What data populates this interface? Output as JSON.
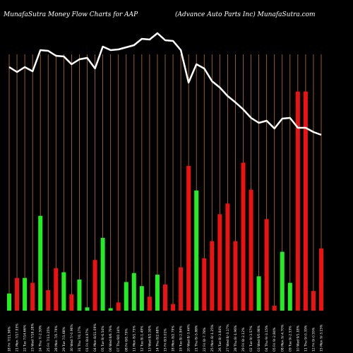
{
  "chart_data": {
    "type": "bar",
    "title_left": "MunafaSutra  Money Flow  Charts for AAP",
    "title_right": "(Advance   Auto   Parts Inc) MunafaSutra.com",
    "colors": {
      "background": "#000000",
      "gridline": "#b87333",
      "up": "#22ee22",
      "down": "#ee1111",
      "price_line": "#ffffff",
      "text": "#ffffff"
    },
    "categories": [
      "18 Fri 7/11.56%",
      "21 Mon 7/17.93%",
      "22 Tue 7/14.66%",
      "23 Wed 7/18.28%",
      "24 Thu 7/-2.59%",
      "25 Fri 7/13.25%",
      "28 Mon 7/0.79%",
      "29 Tue 7/1.68%",
      "30 Wed 7/-0.96%",
      "31 Thu 7/0.17%",
      "01 Fri 8/4.97%",
      "04 Mon 8/11.09%",
      "05 Tue 8/-6.54%",
      "06 Wed 8/6.79%",
      "07 Thu 8/0.14%",
      "08 Fri 8/0.75%",
      "11 Mon 8/1.75%",
      "12 Tue 8/-1.49%",
      "13 Wed 8/2.59%",
      "14 Thu 8/2.68%",
      "15 Fri 8/3.01%",
      "18 Mon 8/2.79%",
      "19 Tue 8/-2.94%",
      "20 Wed 8/-3.44%",
      "21 Thu 8/-5.86%",
      "22 Fri 8/-7.78%",
      "25 Mon 8/-1.25%",
      "26 Tue 8/-3.84%",
      "27 Wed 8/-3.17%",
      "28 Thu 8/-1.96%",
      "29 Fri 8/-2.12%",
      "02 Tue 9/-3.57%",
      "03 Wed 9/0.98%",
      "04 Thu 9/-3.15%",
      "05 Fri 9/-2.84%",
      "08 Mon 9/-4.70%",
      "09 Tue 9/-2.53%",
      "10 Wed 9/1.18%",
      "11 Thu 9/-0.35%",
      "12 Fri 9/-0.55%",
      "15 Mon 9/-3.15%"
    ],
    "bars": [
      {
        "value": 21,
        "direction": "up"
      },
      {
        "value": 40,
        "direction": "down"
      },
      {
        "value": 40,
        "direction": "up"
      },
      {
        "value": 34,
        "direction": "down"
      },
      {
        "value": 116,
        "direction": "up"
      },
      {
        "value": 25,
        "direction": "down"
      },
      {
        "value": 52,
        "direction": "down"
      },
      {
        "value": 47,
        "direction": "up"
      },
      {
        "value": 20,
        "direction": "down"
      },
      {
        "value": 38,
        "direction": "up"
      },
      {
        "value": 4,
        "direction": "up"
      },
      {
        "value": 62,
        "direction": "down"
      },
      {
        "value": 89,
        "direction": "up"
      },
      {
        "value": 3,
        "direction": "up"
      },
      {
        "value": 10,
        "direction": "down"
      },
      {
        "value": 35,
        "direction": "up"
      },
      {
        "value": 46,
        "direction": "up"
      },
      {
        "value": 30,
        "direction": "up"
      },
      {
        "value": 17,
        "direction": "down"
      },
      {
        "value": 44,
        "direction": "up"
      },
      {
        "value": 32,
        "direction": "down"
      },
      {
        "value": 8,
        "direction": "down"
      },
      {
        "value": 53,
        "direction": "down"
      },
      {
        "value": 177,
        "direction": "down"
      },
      {
        "value": 147,
        "direction": "up"
      },
      {
        "value": 64,
        "direction": "down"
      },
      {
        "value": 85,
        "direction": "down"
      },
      {
        "value": 118,
        "direction": "down"
      },
      {
        "value": 131,
        "direction": "down"
      },
      {
        "value": 85,
        "direction": "down"
      },
      {
        "value": 181,
        "direction": "down"
      },
      {
        "value": 148,
        "direction": "down"
      },
      {
        "value": 42,
        "direction": "up"
      },
      {
        "value": 112,
        "direction": "down"
      },
      {
        "value": 6,
        "direction": "down"
      },
      {
        "value": 72,
        "direction": "up"
      },
      {
        "value": 34,
        "direction": "up"
      },
      {
        "value": 268,
        "direction": "down"
      },
      {
        "value": 268,
        "direction": "down"
      },
      {
        "value": 24,
        "direction": "down"
      },
      {
        "value": 76,
        "direction": "down"
      }
    ],
    "bar_scale_max": 380,
    "price_line": [
      95,
      102,
      95,
      101,
      71,
      72,
      79,
      80,
      91,
      84,
      82,
      97,
      66,
      71,
      70,
      67,
      64,
      55,
      56,
      47,
      57,
      58,
      71,
      117,
      91,
      97,
      115,
      124,
      136,
      145,
      155,
      167,
      174,
      171,
      182,
      168,
      167,
      181,
      181,
      187,
      191
    ],
    "price_scale": {
      "min": 0,
      "max": 440,
      "inverted": true
    }
  }
}
